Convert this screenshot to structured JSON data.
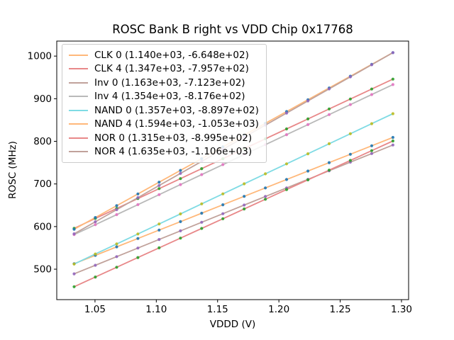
{
  "chart": {
    "title": "ROSC Bank B right vs VDD Chip 0x17768",
    "xlabel": "VDDD (V)",
    "ylabel": "ROSC (MHz)"
  },
  "chart_data": {
    "type": "line",
    "title": "ROSC Bank B right vs VDD Chip 0x17768",
    "xlabel": "VDDD (V)",
    "ylabel": "ROSC (MHz)",
    "grid": false,
    "legend_position": "upper left",
    "xlim": [
      1.0188,
      1.3058
    ],
    "ylim": [
      428.6,
      1035.2
    ],
    "xticks": [
      1.05,
      1.1,
      1.15,
      1.2,
      1.25,
      1.3
    ],
    "yticks": [
      500,
      600,
      700,
      800,
      900,
      1000
    ],
    "x": [
      1.033,
      1.0503,
      1.0677,
      1.085,
      1.1023,
      1.1197,
      1.137,
      1.1543,
      1.1717,
      1.189,
      1.2063,
      1.2237,
      1.241,
      1.2583,
      1.2757,
      1.293
    ],
    "series_note": "each series is a linear fit y = slope*x + intercept (MHz vs V); legend shows (slope, intercept)",
    "series": [
      {
        "name": "CLK 0",
        "label": "CLK 0 (1.140e+03, -6.648e+02)",
        "slope": 1140.0,
        "intercept": -664.8,
        "line_color": "#ffb87a",
        "marker_color": "#1f77b4"
      },
      {
        "name": "CLK 4",
        "label": "CLK 4 (1.347e+03, -7.957e+02)",
        "slope": 1347.0,
        "intercept": -795.7,
        "line_color": "#e88889",
        "marker_color": "#2ca02c"
      },
      {
        "name": "Inv 0",
        "label": "Inv 0 (1.163e+03, -7.123e+02)",
        "slope": 1163.0,
        "intercept": -712.3,
        "line_color": "#c1a29b",
        "marker_color": "#9467bd"
      },
      {
        "name": "Inv 4",
        "label": "Inv 4 (1.354e+03, -8.176e+02)",
        "slope": 1354.0,
        "intercept": -817.6,
        "line_color": "#b9b9b9",
        "marker_color": "#e377c2"
      },
      {
        "name": "NAND 0",
        "label": "NAND 0 (1.357e+03, -8.897e+02)",
        "slope": 1357.0,
        "intercept": -889.7,
        "line_color": "#7fdbe4",
        "marker_color": "#bcbd22"
      },
      {
        "name": "NAND 4",
        "label": "NAND 4 (1.594e+03, -1.053e+03)",
        "slope": 1594.0,
        "intercept": -1053.0,
        "line_color": "#ffb87a",
        "marker_color": "#1f77b4"
      },
      {
        "name": "NOR 0",
        "label": "NOR 0 (1.315e+03, -8.995e+02)",
        "slope": 1315.0,
        "intercept": -899.5,
        "line_color": "#e88889",
        "marker_color": "#2ca02c"
      },
      {
        "name": "NOR 4",
        "label": "NOR 4 (1.635e+03, -1.106e+03)",
        "slope": 1635.0,
        "intercept": -1106.0,
        "line_color": "#c1a29b",
        "marker_color": "#9467bd"
      }
    ]
  }
}
